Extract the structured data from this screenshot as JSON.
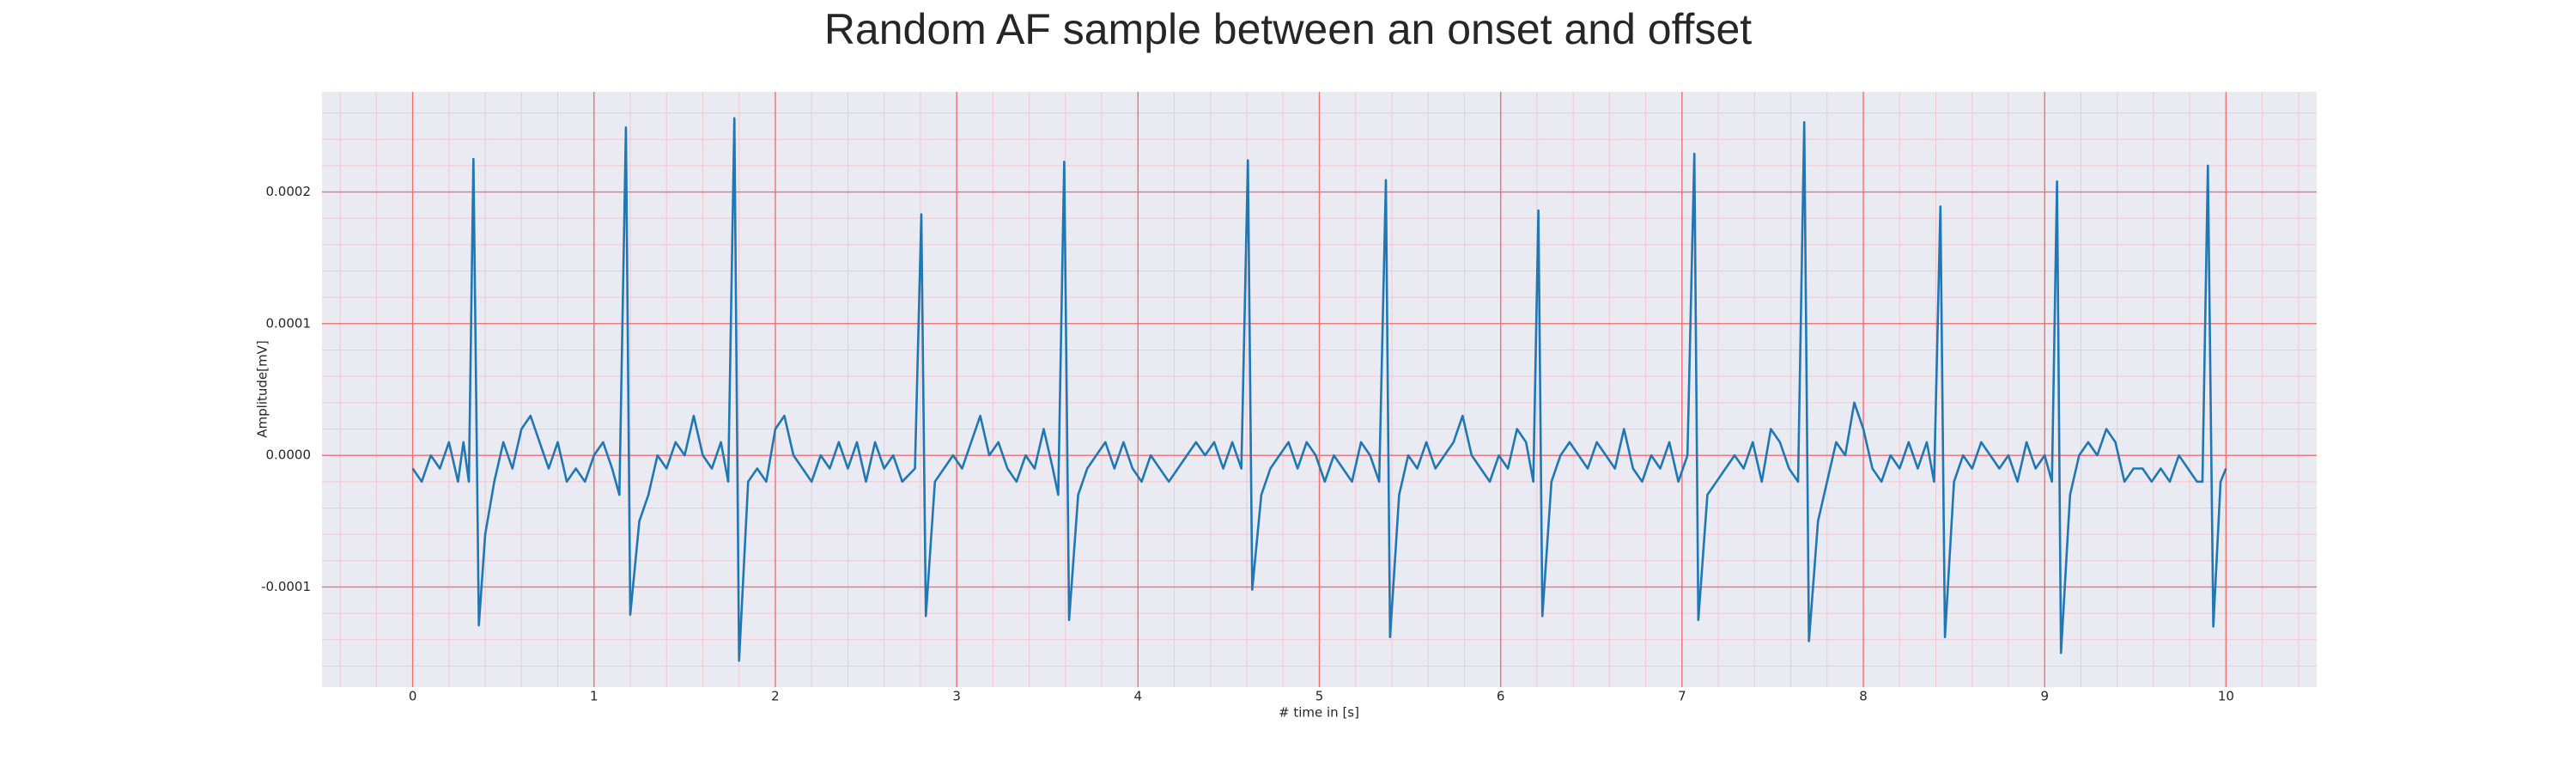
{
  "chart_data": {
    "type": "line",
    "title": "Random AF sample between an onset and offset",
    "x_label": "# time in [s]",
    "y_label": "Amplitude[mV]",
    "color": "#1f77b4",
    "grid": true,
    "grid_color": "#f07070",
    "minor_grid": true,
    "minor_grid_color": "#f3c8d0",
    "xlim": [
      -0.5,
      10.5
    ],
    "ylim": [
      -0.000176,
      0.000276
    ],
    "xticks": [
      0,
      1,
      2,
      3,
      4,
      5,
      6,
      7,
      8,
      9,
      10
    ],
    "yticks": [
      {
        "value": -0.0001,
        "label": "-0.0001"
      },
      {
        "value": 0,
        "label": "0.0000"
      },
      {
        "value": 0.0001,
        "label": "0.0001"
      },
      {
        "value": 0.0002,
        "label": "0.0002"
      }
    ],
    "x": [
      0,
      0.05,
      0.1,
      0.15,
      0.2,
      0.25,
      0.28,
      0.31,
      0.335,
      0.365,
      0.4,
      0.45,
      0.5,
      0.55,
      0.6,
      0.65,
      0.7,
      0.75,
      0.8,
      0.85,
      0.9,
      0.95,
      1.0,
      1.05,
      1.1,
      1.14,
      1.176,
      1.2,
      1.25,
      1.3,
      1.35,
      1.4,
      1.45,
      1.5,
      1.55,
      1.6,
      1.65,
      1.7,
      1.74,
      1.774,
      1.8,
      1.85,
      1.9,
      1.95,
      2.0,
      2.05,
      2.1,
      2.15,
      2.2,
      2.25,
      2.3,
      2.35,
      2.4,
      2.45,
      2.5,
      2.55,
      2.6,
      2.65,
      2.7,
      2.77,
      2.805,
      2.83,
      2.88,
      2.93,
      2.98,
      3.03,
      3.08,
      3.13,
      3.18,
      3.23,
      3.28,
      3.33,
      3.38,
      3.43,
      3.48,
      3.53,
      3.56,
      3.593,
      3.62,
      3.67,
      3.72,
      3.77,
      3.82,
      3.87,
      3.92,
      3.97,
      4.02,
      4.07,
      4.12,
      4.17,
      4.22,
      4.27,
      4.32,
      4.37,
      4.42,
      4.47,
      4.52,
      4.57,
      4.606,
      4.63,
      4.68,
      4.73,
      4.78,
      4.83,
      4.88,
      4.93,
      4.98,
      5.03,
      5.08,
      5.13,
      5.18,
      5.23,
      5.28,
      5.33,
      5.367,
      5.39,
      5.44,
      5.49,
      5.54,
      5.59,
      5.64,
      5.69,
      5.74,
      5.79,
      5.84,
      5.89,
      5.94,
      5.99,
      6.04,
      6.09,
      6.14,
      6.18,
      6.208,
      6.23,
      6.28,
      6.33,
      6.38,
      6.43,
      6.48,
      6.53,
      6.58,
      6.63,
      6.68,
      6.73,
      6.78,
      6.83,
      6.88,
      6.93,
      6.98,
      7.03,
      7.068,
      7.09,
      7.14,
      7.19,
      7.24,
      7.29,
      7.34,
      7.39,
      7.44,
      7.49,
      7.54,
      7.59,
      7.64,
      7.674,
      7.7,
      7.75,
      7.8,
      7.85,
      7.9,
      7.95,
      8.0,
      8.05,
      8.1,
      8.15,
      8.2,
      8.25,
      8.3,
      8.35,
      8.39,
      8.425,
      8.45,
      8.5,
      8.55,
      8.6,
      8.65,
      8.7,
      8.75,
      8.8,
      8.85,
      8.9,
      8.95,
      9.0,
      9.04,
      9.068,
      9.09,
      9.14,
      9.19,
      9.24,
      9.29,
      9.34,
      9.39,
      9.44,
      9.49,
      9.54,
      9.59,
      9.64,
      9.69,
      9.74,
      9.79,
      9.84,
      9.87,
      9.9,
      9.93,
      9.97,
      10.0
    ],
    "values": [
      -1e-05,
      -2e-05,
      0.0,
      -1e-05,
      1e-05,
      -2e-05,
      1e-05,
      -2e-05,
      0.000225,
      -0.000129,
      -6e-05,
      -2e-05,
      1e-05,
      -1e-05,
      2e-05,
      3e-05,
      1e-05,
      -1e-05,
      1e-05,
      -2e-05,
      -1e-05,
      -2e-05,
      0.0,
      1e-05,
      -1e-05,
      -3e-05,
      0.000249,
      -0.000121,
      -5e-05,
      -3e-05,
      0.0,
      -1e-05,
      1e-05,
      0.0,
      3e-05,
      0.0,
      -1e-05,
      1e-05,
      -2e-05,
      0.000256,
      -0.000156,
      -2e-05,
      -1e-05,
      -2e-05,
      2e-05,
      3e-05,
      0.0,
      -1e-05,
      -2e-05,
      0.0,
      -1e-05,
      1e-05,
      -1e-05,
      1e-05,
      -2e-05,
      1e-05,
      -1e-05,
      0.0,
      -2e-05,
      -1e-05,
      0.000183,
      -0.000122,
      -2e-05,
      -1e-05,
      0.0,
      -1e-05,
      1e-05,
      3e-05,
      0.0,
      1e-05,
      -1e-05,
      -2e-05,
      0.0,
      -1e-05,
      2e-05,
      -1e-05,
      -3e-05,
      0.000223,
      -0.000125,
      -3e-05,
      -1e-05,
      0.0,
      1e-05,
      -1e-05,
      1e-05,
      -1e-05,
      -2e-05,
      0.0,
      -1e-05,
      -2e-05,
      -1e-05,
      0.0,
      1e-05,
      0.0,
      1e-05,
      -1e-05,
      1e-05,
      -1e-05,
      0.000224,
      -0.000102,
      -3e-05,
      -1e-05,
      0.0,
      1e-05,
      -1e-05,
      1e-05,
      0.0,
      -2e-05,
      0.0,
      -1e-05,
      -2e-05,
      1e-05,
      0.0,
      -2e-05,
      0.000209,
      -0.000138,
      -3e-05,
      0.0,
      -1e-05,
      1e-05,
      -1e-05,
      0.0,
      1e-05,
      3e-05,
      0.0,
      -1e-05,
      -2e-05,
      0.0,
      -1e-05,
      2e-05,
      1e-05,
      -2e-05,
      0.000186,
      -0.000122,
      -2e-05,
      0.0,
      1e-05,
      0.0,
      -1e-05,
      1e-05,
      0.0,
      -1e-05,
      2e-05,
      -1e-05,
      -2e-05,
      0.0,
      -1e-05,
      1e-05,
      -2e-05,
      0.0,
      0.000229,
      -0.000125,
      -3e-05,
      -2e-05,
      -1e-05,
      0.0,
      -1e-05,
      1e-05,
      -2e-05,
      2e-05,
      1e-05,
      -1e-05,
      -2e-05,
      0.000253,
      -0.000141,
      -5e-05,
      -2e-05,
      1e-05,
      0.0,
      4e-05,
      2e-05,
      -1e-05,
      -2e-05,
      0.0,
      -1e-05,
      1e-05,
      -1e-05,
      1e-05,
      -2e-05,
      0.000189,
      -0.000138,
      -2e-05,
      0.0,
      -1e-05,
      1e-05,
      0.0,
      -1e-05,
      0.0,
      -2e-05,
      1e-05,
      -1e-05,
      0.0,
      -2e-05,
      0.000208,
      -0.00015,
      -3e-05,
      0.0,
      1e-05,
      0.0,
      2e-05,
      1e-05,
      -2e-05,
      -1e-05,
      -1e-05,
      -2e-05,
      -1e-05,
      -2e-05,
      0.0,
      -1e-05,
      -2e-05,
      -2e-05,
      0.00022,
      -0.00013,
      -2e-05,
      -1e-05
    ]
  }
}
